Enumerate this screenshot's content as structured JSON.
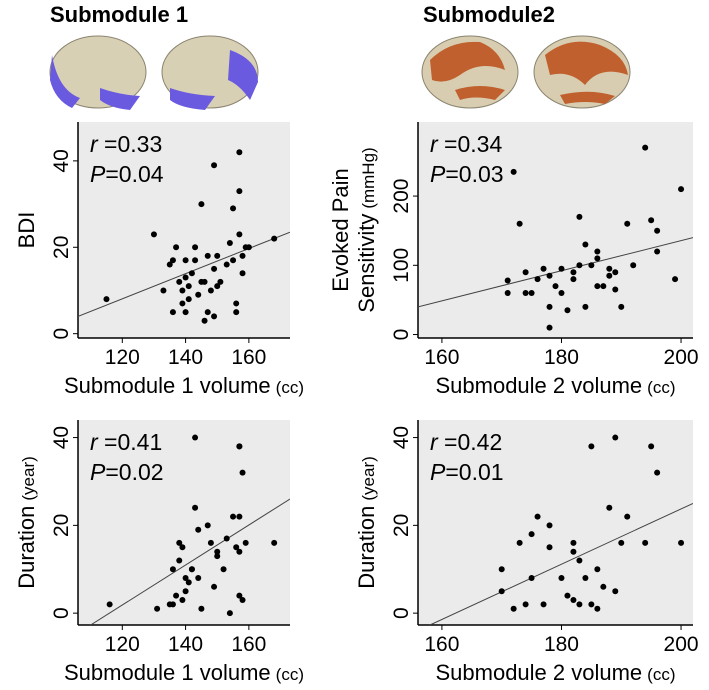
{
  "headings": [
    "Submodule 1",
    "Submodule2"
  ],
  "chart_data": [
    {
      "type": "scatter",
      "xlabel": "Submodule 1 volume",
      "xlabel_unit": "(cc)",
      "ylabel": [
        "BDI"
      ],
      "annotation": [
        {
          "symbol": "r",
          "text": " =0.33"
        },
        {
          "symbol": "P",
          "text": "=0.04"
        }
      ],
      "xlim": [
        106,
        173
      ],
      "ylim": [
        -1,
        49
      ],
      "xticks": [
        120,
        140,
        160
      ],
      "yticks": [
        0,
        20,
        40
      ],
      "color": "#000000",
      "x": [
        115,
        130,
        133,
        135,
        136,
        136,
        137,
        138,
        139,
        139,
        140,
        140,
        140,
        141,
        141,
        142,
        143,
        143,
        144,
        145,
        145,
        146,
        146,
        147,
        147,
        148,
        149,
        149,
        149,
        150,
        150,
        151,
        153,
        154,
        155,
        155,
        156,
        156,
        157,
        157,
        157,
        158,
        158,
        159,
        160,
        168
      ],
      "values": [
        8,
        23,
        10,
        16,
        5,
        17,
        20,
        12,
        10,
        7,
        5,
        13,
        17,
        8,
        11,
        14,
        17,
        20,
        9,
        12,
        30,
        3,
        12,
        18,
        5,
        10,
        39,
        15,
        4,
        11,
        18,
        12,
        16,
        21,
        29,
        17,
        7,
        5,
        42,
        23,
        33,
        18,
        14,
        20,
        20,
        22
      ],
      "fit_x": [
        106,
        173
      ],
      "fit_y": [
        4,
        23.5
      ]
    },
    {
      "type": "scatter",
      "xlabel": "Submodule 2 volume",
      "xlabel_unit": "(cc)",
      "ylabel": [
        "Evoked Pain",
        "Sensitivity"
      ],
      "ylabel_unit": "(mmHg)",
      "annotation": [
        {
          "symbol": "r",
          "text": " =0.34"
        },
        {
          "symbol": "P",
          "text": "=0.03"
        }
      ],
      "xlim": [
        156,
        202
      ],
      "ylim": [
        -5,
        307
      ],
      "xticks": [
        160,
        180,
        200
      ],
      "yticks": [
        0,
        100,
        200
      ],
      "color": "#000000",
      "x": [
        171,
        171,
        172,
        173,
        174,
        174,
        175,
        176,
        177,
        178,
        178,
        178,
        179,
        180,
        180,
        181,
        182,
        182,
        183,
        183,
        184,
        184,
        185,
        186,
        186,
        186,
        187,
        188,
        188,
        189,
        189,
        190,
        191,
        192,
        194,
        195,
        196,
        196,
        199,
        200
      ],
      "values": [
        60,
        78,
        235,
        160,
        90,
        60,
        60,
        80,
        95,
        10,
        40,
        85,
        70,
        60,
        95,
        35,
        90,
        80,
        170,
        100,
        40,
        130,
        100,
        110,
        70,
        120,
        70,
        85,
        95,
        90,
        65,
        40,
        160,
        100,
        270,
        165,
        150,
        120,
        80,
        210
      ],
      "fit_x": [
        156,
        202
      ],
      "fit_y": [
        40,
        140
      ]
    },
    {
      "type": "scatter",
      "xlabel": "Submodule 1 volume",
      "xlabel_unit": "(cc)",
      "ylabel": [
        "Duration"
      ],
      "ylabel_unit": "(year)",
      "annotation": [
        {
          "symbol": "r",
          "text": " =0.41"
        },
        {
          "symbol": "P",
          "text": "=0.02"
        }
      ],
      "xlim": [
        106,
        173
      ],
      "ylim": [
        -2.7,
        44
      ],
      "xticks": [
        120,
        140,
        160
      ],
      "yticks": [
        0,
        20,
        40
      ],
      "color": "#000000",
      "x": [
        116,
        131,
        135,
        136,
        136,
        137,
        138,
        138,
        139,
        139,
        140,
        140,
        141,
        142,
        142,
        143,
        143,
        144,
        144,
        145,
        147,
        148,
        149,
        150,
        150,
        152,
        153,
        154,
        155,
        156,
        157,
        157,
        157,
        157,
        157,
        158,
        158,
        159,
        168
      ],
      "values": [
        2,
        1,
        2,
        10,
        2,
        4,
        12,
        16,
        15,
        3,
        8,
        5,
        7,
        10,
        10,
        40,
        24,
        19,
        8,
        1,
        20,
        16,
        6,
        13,
        14,
        10,
        17,
        0,
        22,
        15,
        38,
        38,
        22,
        14,
        4,
        32,
        3,
        16,
        16
      ],
      "fit_x": [
        110,
        173
      ],
      "fit_y": [
        -2.7,
        26
      ]
    },
    {
      "type": "scatter",
      "xlabel": "Submodule 2 volume",
      "xlabel_unit": "(cc)",
      "ylabel": [
        "Duration"
      ],
      "ylabel_unit": "(year)",
      "annotation": [
        {
          "symbol": "r",
          "text": " =0.42"
        },
        {
          "symbol": "P",
          "text": "=0.01"
        }
      ],
      "xlim": [
        156,
        202
      ],
      "ylim": [
        -2.7,
        44
      ],
      "xticks": [
        160,
        180,
        200
      ],
      "yticks": [
        0,
        20,
        40
      ],
      "color": "#000000",
      "x": [
        170,
        170,
        172,
        173,
        174,
        175,
        175,
        176,
        177,
        178,
        178,
        180,
        181,
        182,
        182,
        182,
        183,
        183,
        184,
        185,
        185,
        186,
        186,
        187,
        188,
        189,
        189,
        190,
        191,
        194,
        195,
        196,
        200
      ],
      "values": [
        5,
        10,
        1,
        16,
        2,
        8,
        18,
        22,
        2,
        15,
        20,
        8,
        4,
        14,
        16,
        3,
        12,
        2,
        8,
        38,
        2,
        1,
        10,
        6,
        24,
        5,
        40,
        16,
        22,
        16,
        38,
        32,
        16
      ],
      "fit_x": [
        158,
        202
      ],
      "fit_y": [
        -2.7,
        25
      ]
    }
  ]
}
